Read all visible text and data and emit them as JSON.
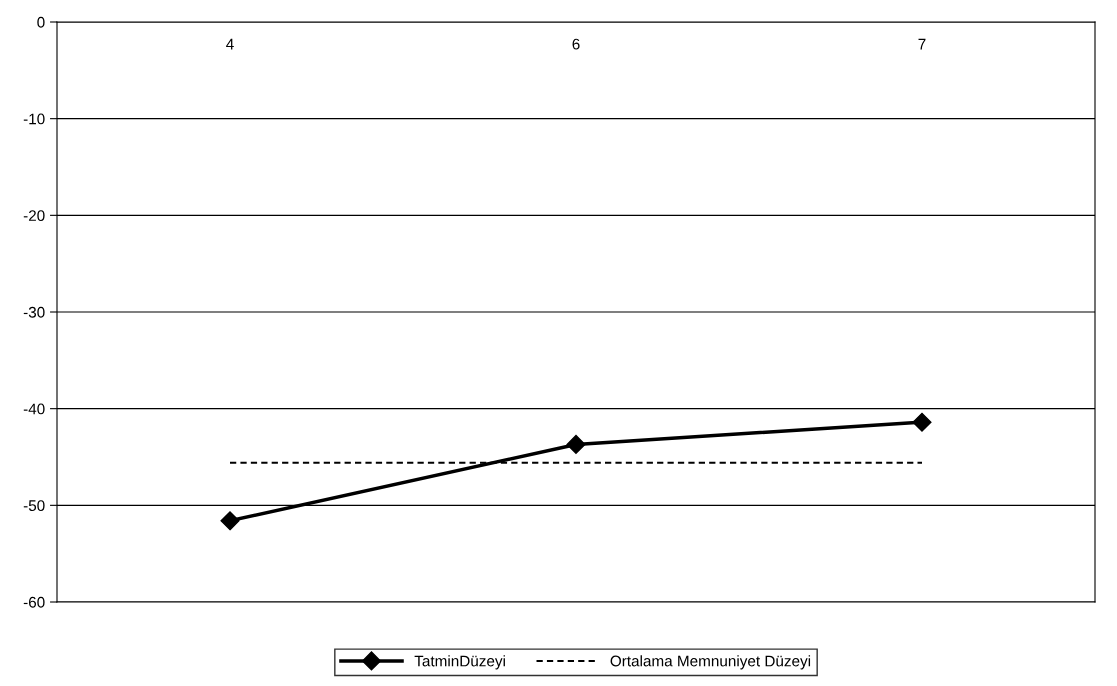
{
  "chart_data": {
    "type": "line",
    "categories": [
      "4",
      "6",
      "7"
    ],
    "series": [
      {
        "name": "TatminDüzeyi",
        "color": "#000000",
        "values": [
          -51.6,
          -43.7,
          -41.4
        ],
        "marker": "diamond",
        "line_style": "solid"
      },
      {
        "name": "Ortalama Memnuniyet Düzeyi",
        "color": "#000000",
        "values": [
          -45.6,
          -45.6,
          -45.6
        ],
        "marker": "none",
        "line_style": "dotted"
      }
    ],
    "ylim": [
      -60,
      0
    ],
    "yticks": [
      0,
      -10,
      -20,
      -30,
      -40,
      -50,
      -60
    ],
    "grid": "y",
    "legend": "bottom"
  }
}
